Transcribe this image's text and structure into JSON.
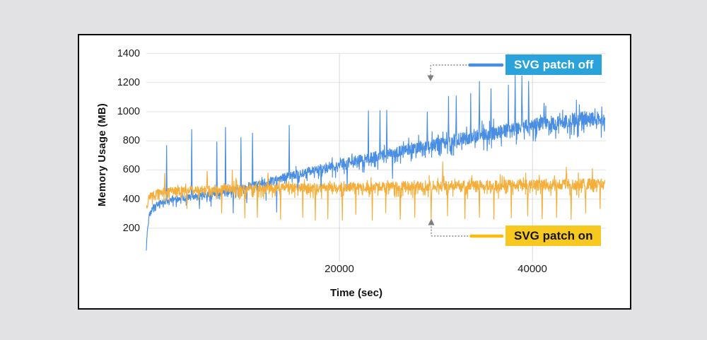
{
  "chart": {
    "y_axis": {
      "title": "Memory Usage (MB)",
      "ticks": [
        "1400",
        "1200",
        "1000",
        "800",
        "600",
        "400",
        "200"
      ]
    },
    "x_axis": {
      "title": "Time (sec)",
      "ticks": [
        "20000",
        "40000"
      ]
    },
    "legend": {
      "off": {
        "label": "SVG patch off",
        "bg": "#29a3d9",
        "text_color": "#ffffff",
        "swatch_color": "#4a8ee4"
      },
      "on": {
        "label": "SVG patch on",
        "bg": "#f7c81f",
        "text_color": "#15150f",
        "swatch_color": "#fbbb12"
      }
    },
    "colors": {
      "grid_h": "#e3e3e3",
      "grid_v": "#d8d8d8",
      "arrow": "#8a8a8a"
    }
  },
  "chart_data": {
    "type": "line",
    "title": "",
    "xlabel": "Time (sec)",
    "ylabel": "Memory Usage (MB)",
    "xlim": [
      0,
      48000
    ],
    "ylim": [
      0,
      1450
    ],
    "x_ticks": [
      20000,
      40000
    ],
    "y_ticks": [
      200,
      400,
      600,
      800,
      1000,
      1200,
      1400
    ],
    "grid": true,
    "legend_position": "inset-right",
    "series": [
      {
        "name": "SVG patch off",
        "color": "#4a8ee4",
        "seed": 11,
        "trend": [
          [
            0,
            55
          ],
          [
            100,
            180
          ],
          [
            300,
            290
          ],
          [
            700,
            345
          ],
          [
            1500,
            375
          ],
          [
            3000,
            400
          ],
          [
            5000,
            420
          ],
          [
            8000,
            450
          ],
          [
            11000,
            495
          ],
          [
            14000,
            545
          ],
          [
            17000,
            595
          ],
          [
            20000,
            640
          ],
          [
            24000,
            695
          ],
          [
            28000,
            755
          ],
          [
            32000,
            805
          ],
          [
            36000,
            855
          ],
          [
            40000,
            905
          ],
          [
            44000,
            940
          ],
          [
            47500,
            965
          ]
        ],
        "noise_amp": [
          [
            0,
            18
          ],
          [
            8000,
            24
          ],
          [
            16000,
            30
          ],
          [
            26000,
            38
          ],
          [
            36000,
            48
          ],
          [
            47500,
            55
          ]
        ],
        "spikes_up": [
          [
            2100,
            770
          ],
          [
            4700,
            880
          ],
          [
            7300,
            795
          ],
          [
            8200,
            895
          ],
          [
            9800,
            825
          ],
          [
            11000,
            855
          ],
          [
            14800,
            908
          ],
          [
            23000,
            1008
          ],
          [
            24200,
            1010
          ],
          [
            24900,
            1012
          ],
          [
            29100,
            1000
          ],
          [
            31300,
            1108
          ],
          [
            32100,
            1110
          ],
          [
            33600,
            1128
          ],
          [
            34500,
            1210
          ],
          [
            35700,
            1160
          ],
          [
            37500,
            1185
          ],
          [
            38200,
            1252
          ],
          [
            38900,
            1248
          ],
          [
            39600,
            1210
          ],
          [
            41200,
            1060
          ]
        ],
        "spikes_down": [
          [
            3100,
            345
          ],
          [
            5500,
            332
          ],
          [
            6700,
            348
          ],
          [
            9000,
            302
          ],
          [
            10400,
            372
          ],
          [
            12400,
            388
          ],
          [
            13500,
            308
          ],
          [
            15700,
            425
          ],
          [
            18100,
            445
          ],
          [
            20800,
            470
          ],
          [
            25500,
            540
          ]
        ]
      },
      {
        "name": "SVG patch on",
        "color": "#f6ae3a",
        "seed": 77,
        "trend": [
          [
            0,
            340
          ],
          [
            300,
            415
          ],
          [
            1000,
            442
          ],
          [
            2500,
            455
          ],
          [
            5000,
            465
          ],
          [
            10000,
            472
          ],
          [
            20000,
            482
          ],
          [
            30000,
            492
          ],
          [
            40000,
            500
          ],
          [
            47500,
            505
          ]
        ],
        "noise_amp": [
          [
            0,
            26
          ],
          [
            10000,
            30
          ],
          [
            30000,
            34
          ],
          [
            47500,
            38
          ]
        ],
        "spikes_up": [
          [
            1900,
            578
          ],
          [
            6300,
            592
          ],
          [
            8900,
            602
          ],
          [
            12600,
            582
          ],
          [
            30700,
            658
          ],
          [
            43500,
            622
          ],
          [
            46200,
            612
          ]
        ],
        "spikes_down": [
          [
            4200,
            332
          ],
          [
            7800,
            302
          ],
          [
            10200,
            268
          ],
          [
            11500,
            272
          ],
          [
            13900,
            258
          ],
          [
            16200,
            272
          ],
          [
            17500,
            252
          ],
          [
            18800,
            262
          ],
          [
            20300,
            252
          ],
          [
            21700,
            292
          ],
          [
            23400,
            252
          ],
          [
            24800,
            302
          ],
          [
            26300,
            258
          ],
          [
            27800,
            272
          ],
          [
            29500,
            252
          ],
          [
            31200,
            282
          ],
          [
            33000,
            262
          ],
          [
            34500,
            272
          ],
          [
            36000,
            258
          ],
          [
            37800,
            268
          ],
          [
            39500,
            282
          ],
          [
            41000,
            262
          ],
          [
            42500,
            272
          ],
          [
            44000,
            258
          ],
          [
            45500,
            302
          ],
          [
            47000,
            332
          ]
        ]
      }
    ]
  }
}
